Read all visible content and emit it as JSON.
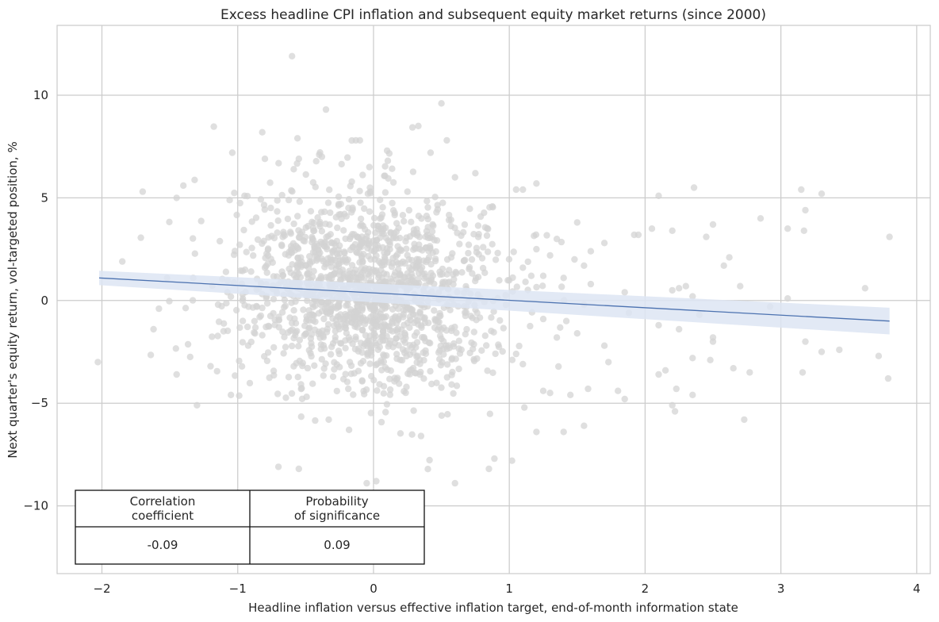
{
  "chart_data": {
    "type": "scatter",
    "title": "Excess headline CPI inflation and subsequent equity market returns (since 2000)",
    "xlabel": "Headline inflation versus effective inflation target, end-of-month information state",
    "ylabel": "Next quarter's equity return, vol-targeted position, %",
    "xlim": [
      -2.33,
      4.1
    ],
    "ylim": [
      -13.3,
      13.4
    ],
    "xticks": [
      -2,
      -1,
      0,
      1,
      2,
      3,
      4
    ],
    "xtick_labels": [
      "−2",
      "−1",
      "0",
      "1",
      "2",
      "3",
      "4"
    ],
    "yticks": [
      -10,
      -5,
      0,
      5,
      10
    ],
    "ytick_labels": [
      "−10",
      "−5",
      "0",
      "5",
      "10"
    ],
    "grid": true,
    "point_color": "#d3d3d3",
    "regression": {
      "x": [
        -2.02,
        3.8
      ],
      "y": [
        1.1,
        -1.0
      ],
      "ci_upper": [
        1.45,
        -0.35
      ],
      "ci_lower": [
        0.75,
        -1.65
      ],
      "line_color": "#4c72b0",
      "band_color": "#dde5f3"
    },
    "points": [
      [
        -0.6,
        11.9
      ],
      [
        0.5,
        9.6
      ],
      [
        -0.35,
        9.3
      ],
      [
        0.33,
        8.5
      ],
      [
        -0.56,
        7.9
      ],
      [
        -0.13,
        7.8
      ],
      [
        -0.1,
        7.8
      ],
      [
        0.54,
        7.8
      ],
      [
        0.1,
        7.3
      ],
      [
        -1.04,
        7.2
      ],
      [
        0.42,
        7.2
      ],
      [
        -0.4,
        7.1
      ],
      [
        -0.38,
        7.0
      ],
      [
        0.75,
        6.2
      ],
      [
        -0.55,
        6.9
      ],
      [
        -0.8,
        6.9
      ],
      [
        -0.03,
        6.5
      ],
      [
        0.6,
        6.0
      ],
      [
        -1.7,
        5.3
      ],
      [
        -1.45,
        5.0
      ],
      [
        -1.4,
        5.6
      ],
      [
        1.05,
        5.4
      ],
      [
        1.1,
        5.4
      ],
      [
        1.2,
        5.7
      ],
      [
        3.15,
        5.4
      ],
      [
        3.3,
        5.2
      ],
      [
        2.1,
        5.1
      ],
      [
        2.36,
        5.5
      ],
      [
        -0.95,
        5.1
      ],
      [
        0.25,
        5.3
      ],
      [
        1.5,
        3.8
      ],
      [
        1.35,
        3.0
      ],
      [
        3.18,
        4.4
      ],
      [
        3.17,
        3.4
      ],
      [
        3.05,
        3.5
      ],
      [
        2.85,
        4.0
      ],
      [
        2.2,
        3.4
      ],
      [
        2.45,
        3.1
      ],
      [
        2.5,
        3.7
      ],
      [
        1.95,
        3.2
      ],
      [
        1.92,
        3.2
      ],
      [
        1.7,
        2.8
      ],
      [
        2.05,
        3.5
      ],
      [
        2.62,
        2.1
      ],
      [
        2.58,
        1.7
      ],
      [
        2.7,
        0.7
      ],
      [
        3.62,
        0.6
      ],
      [
        3.8,
        3.1
      ],
      [
        -1.85,
        1.9
      ],
      [
        -1.52,
        1.1
      ],
      [
        -2.03,
        -3.0
      ],
      [
        -1.62,
        -1.4
      ],
      [
        -1.58,
        -0.4
      ],
      [
        -1.45,
        -3.6
      ],
      [
        -1.3,
        -5.1
      ],
      [
        -1.2,
        -3.2
      ],
      [
        -1.05,
        -4.6
      ],
      [
        1.4,
        -6.4
      ],
      [
        1.55,
        -6.1
      ],
      [
        1.2,
        -6.4
      ],
      [
        1.02,
        -7.8
      ],
      [
        0.85,
        -8.2
      ],
      [
        0.6,
        -8.9
      ],
      [
        -0.05,
        -8.9
      ],
      [
        0.02,
        -8.8
      ],
      [
        -0.7,
        -8.1
      ],
      [
        -0.55,
        -8.2
      ],
      [
        -0.18,
        -6.3
      ],
      [
        -0.33,
        -5.8
      ],
      [
        0.35,
        -6.6
      ],
      [
        1.8,
        -4.4
      ],
      [
        1.85,
        -4.8
      ],
      [
        2.1,
        -3.6
      ],
      [
        2.15,
        -3.4
      ],
      [
        2.2,
        -5.1
      ],
      [
        2.22,
        -5.4
      ],
      [
        2.23,
        -4.3
      ],
      [
        2.35,
        -4.6
      ],
      [
        2.73,
        -5.8
      ],
      [
        2.5,
        -2.0
      ],
      [
        2.48,
        -2.9
      ],
      [
        2.35,
        -2.8
      ],
      [
        2.65,
        -3.3
      ],
      [
        2.77,
        -3.5
      ],
      [
        3.16,
        -3.5
      ],
      [
        3.18,
        -2.0
      ],
      [
        3.3,
        -2.5
      ],
      [
        3.43,
        -2.4
      ],
      [
        3.72,
        -2.7
      ],
      [
        3.79,
        -3.8
      ],
      [
        2.4,
        -0.7
      ],
      [
        2.25,
        -1.4
      ],
      [
        2.5,
        -1.8
      ],
      [
        2.1,
        -1.2
      ],
      [
        1.88,
        -0.6
      ],
      [
        1.85,
        0.4
      ],
      [
        1.55,
        -0.2
      ],
      [
        1.6,
        0.8
      ],
      [
        2.35,
        0.2
      ],
      [
        2.2,
        0.5
      ],
      [
        2.25,
        0.6
      ],
      [
        2.3,
        0.7
      ],
      [
        1.6,
        2.4
      ],
      [
        1.48,
        2.0
      ],
      [
        1.55,
        1.7
      ],
      [
        1.2,
        2.5
      ],
      [
        1.3,
        2.2
      ],
      [
        1.1,
        1.6
      ],
      [
        1.25,
        1.2
      ],
      [
        1.4,
        1.1
      ],
      [
        1.7,
        -2.2
      ],
      [
        1.73,
        -3.0
      ],
      [
        1.5,
        -1.6
      ],
      [
        1.35,
        -1.8
      ],
      [
        1.42,
        -1.0
      ],
      [
        1.25,
        -0.9
      ],
      [
        1.05,
        -2.6
      ],
      [
        1.1,
        -3.1
      ],
      [
        1.25,
        -4.4
      ],
      [
        1.3,
        -4.5
      ],
      [
        1.45,
        -4.6
      ],
      [
        1.58,
        -4.3
      ],
      [
        2.92,
        -0.3
      ],
      [
        3.05,
        0.1
      ]
    ],
    "table": {
      "headers": [
        "Correlation\ncoefficient",
        "Probability\nof significance"
      ],
      "values": [
        "-0.09",
        "0.09"
      ]
    }
  }
}
